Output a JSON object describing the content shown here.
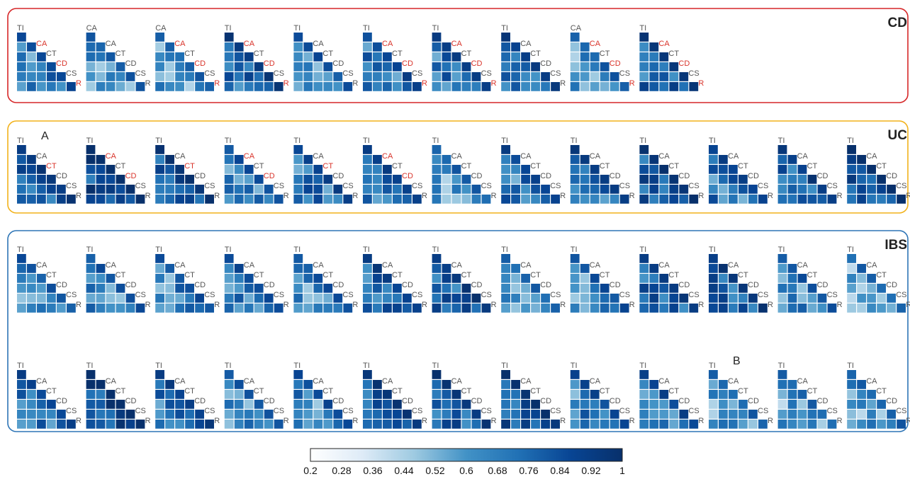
{
  "chart_data": {
    "type": "heatmap",
    "segments": [
      "TI",
      "CA",
      "CT",
      "CD",
      "CS",
      "R"
    ],
    "groups": [
      {
        "name": "CD",
        "border_color": "#d62728",
        "rows": [
          {
            "count": 10,
            "first_segment": [
              "TI",
              "CA",
              "CA",
              "TI",
              "TI",
              "TI",
              "TI",
              "TI",
              "CA",
              "TI"
            ]
          }
        ]
      },
      {
        "name": "UC",
        "border_color": "#f2b21c",
        "rows": [
          {
            "count": 13,
            "first_segment": [
              "TI",
              "TI",
              "TI",
              "TI",
              "TI",
              "TI",
              "TI",
              "TI",
              "TI",
              "TI",
              "TI",
              "TI",
              "TI"
            ]
          }
        ]
      },
      {
        "name": "IBS",
        "border_color": "#2e75b6",
        "rows": [
          {
            "count": 13,
            "first_segment": [
              "TI",
              "TI",
              "TI",
              "TI",
              "TI",
              "TI",
              "TI",
              "TI",
              "TI",
              "TI",
              "TI",
              "TI",
              "TI"
            ]
          },
          {
            "count": 13,
            "first_segment": [
              "TI",
              "TI",
              "TI",
              "TI",
              "TI",
              "TI",
              "TI",
              "TI",
              "TI",
              "TI",
              "TI",
              "TI",
              "TI"
            ]
          }
        ]
      }
    ],
    "highlight_color": "#d9342b",
    "label_color": "#555555",
    "colorbar": {
      "min": 0.2,
      "max": 1,
      "ticks": [
        "0.2",
        "0.28",
        "0.36",
        "0.44",
        "0.52",
        "0.6",
        "0.68",
        "0.76",
        "0.84",
        "0.92",
        "1"
      ],
      "colors": [
        "#ffffff",
        "#deebf7",
        "#9ecae1",
        "#4292c6",
        "#2171b5",
        "#084594",
        "#08306b"
      ]
    },
    "annotations": [
      {
        "text": "A",
        "group": "UC",
        "panel": 1
      },
      {
        "text": "B",
        "group": "IBS",
        "row": 2,
        "panel": 11
      }
    ]
  }
}
